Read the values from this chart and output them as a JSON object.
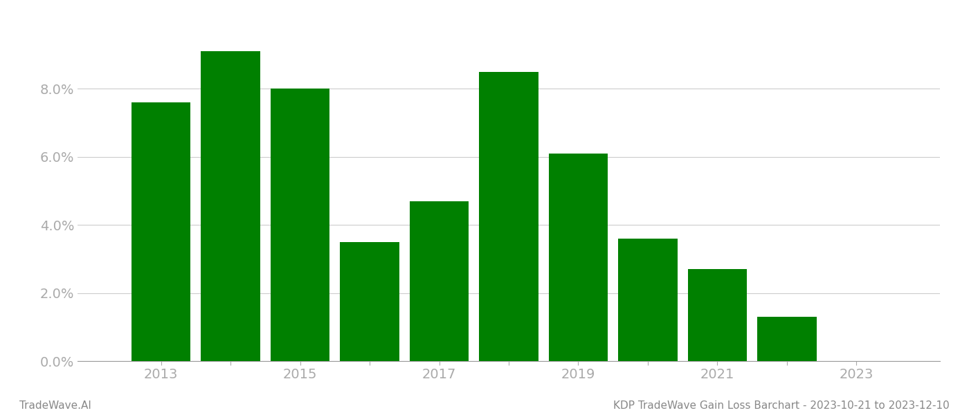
{
  "years": [
    2013,
    2014,
    2015,
    2016,
    2017,
    2018,
    2019,
    2020,
    2021,
    2022
  ],
  "values": [
    0.076,
    0.091,
    0.08,
    0.035,
    0.047,
    0.085,
    0.061,
    0.036,
    0.027,
    0.013
  ],
  "bar_color": "#008000",
  "background_color": "#ffffff",
  "ylim": [
    0,
    0.1
  ],
  "yticks": [
    0.0,
    0.02,
    0.04,
    0.06,
    0.08
  ],
  "grid_color": "#cccccc",
  "footer_left": "TradeWave.AI",
  "footer_right": "KDP TradeWave Gain Loss Barchart - 2023-10-21 to 2023-12-10",
  "footer_color": "#888888",
  "footer_fontsize": 11,
  "axis_label_color": "#aaaaaa",
  "tick_fontsize": 14,
  "bar_width": 0.85,
  "xlim_left": 2011.8,
  "xlim_right": 2024.2
}
